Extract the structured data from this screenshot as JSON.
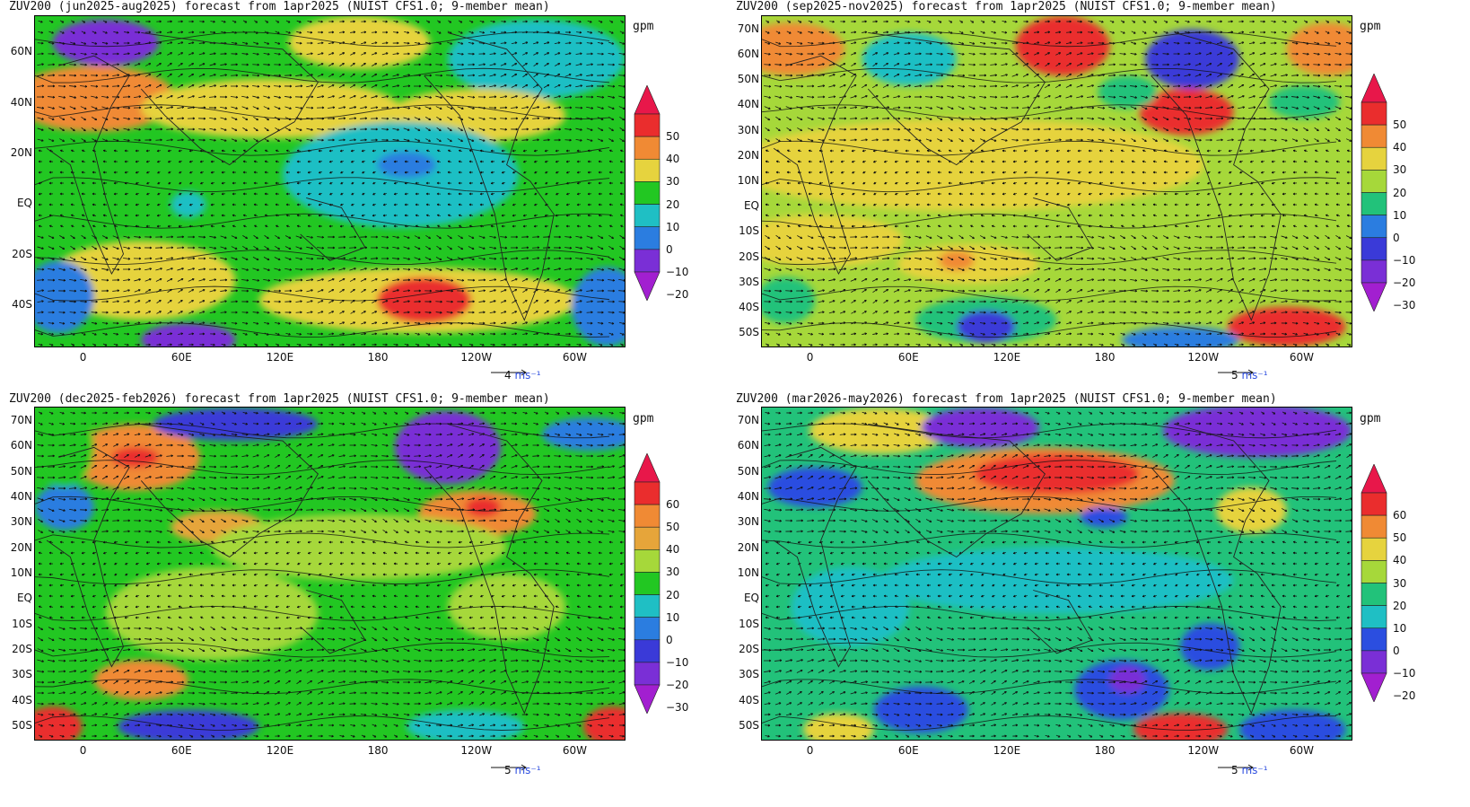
{
  "units_label": "gpm",
  "panels": [
    {
      "id": "jja",
      "title": "ZUV200 (jun2025-aug2025) forecast from 1apr2025 (NUIST CFS1.0; 9-member mean)",
      "lat_labels": [
        "60N",
        "40N",
        "20N",
        "EQ",
        "20S",
        "40S"
      ],
      "lon_labels": [
        "0",
        "60E",
        "120E",
        "180",
        "120W",
        "60W"
      ],
      "colorbar_levels": [
        "50",
        "40",
        "30",
        "20",
        "10",
        "0",
        "-10",
        "-20"
      ],
      "colorbar_colors": [
        "#e8174a",
        "#ea2d2d",
        "#f08a34",
        "#e6d33e",
        "#22c722",
        "#1fbfc4",
        "#2b7de0",
        "#7a2fd6",
        "#a21fd0"
      ],
      "ref_vector": {
        "value": "4",
        "unit": "ms-1"
      },
      "field_base": "#22c722"
    },
    {
      "id": "son",
      "title": "ZUV200 (sep2025-nov2025) forecast from 1apr2025 (NUIST CFS1.0; 9-member mean)",
      "lat_labels": [
        "70N",
        "60N",
        "50N",
        "40N",
        "30N",
        "20N",
        "10N",
        "EQ",
        "10S",
        "20S",
        "30S",
        "40S",
        "50S"
      ],
      "lon_labels": [
        "0",
        "60E",
        "120E",
        "180",
        "120W",
        "60W"
      ],
      "colorbar_levels": [
        "50",
        "40",
        "30",
        "20",
        "10",
        "0",
        "-10",
        "-20",
        "-30"
      ],
      "colorbar_colors": [
        "#e8174a",
        "#ea2d2d",
        "#f08a34",
        "#e6d33e",
        "#a6d83a",
        "#22c27a",
        "#2b7de0",
        "#3a3ad8",
        "#7a2fd6",
        "#a21fd0"
      ],
      "ref_vector": {
        "value": "5",
        "unit": "ms-1"
      },
      "field_base": "#a6d83a"
    },
    {
      "id": "djf",
      "title": "ZUV200 (dec2025-feb2026) forecast from 1apr2025 (NUIST CFS1.0; 9-member mean)",
      "lat_labels": [
        "70N",
        "60N",
        "50N",
        "40N",
        "30N",
        "20N",
        "10N",
        "EQ",
        "10S",
        "20S",
        "30S",
        "40S",
        "50S"
      ],
      "lon_labels": [
        "0",
        "60E",
        "120E",
        "180",
        "120W",
        "60W"
      ],
      "colorbar_levels": [
        "60",
        "50",
        "40",
        "30",
        "20",
        "10",
        "0",
        "-10",
        "-20",
        "-30"
      ],
      "colorbar_colors": [
        "#e8174a",
        "#ea2d2d",
        "#f08a34",
        "#e6a53a",
        "#a6d83a",
        "#22c722",
        "#1fbfc4",
        "#2b7de0",
        "#3a3ad8",
        "#7a2fd6",
        "#a21fd0"
      ],
      "ref_vector": {
        "value": "5",
        "unit": "ms-1"
      },
      "field_base": "#22c722"
    },
    {
      "id": "mam",
      "title": "ZUV200 (mar2026-may2026) forecast from 1apr2025 (NUIST CFS1.0; 9-member mean)",
      "lat_labels": [
        "70N",
        "60N",
        "50N",
        "40N",
        "30N",
        "20N",
        "10N",
        "EQ",
        "10S",
        "20S",
        "30S",
        "40S",
        "50S"
      ],
      "lon_labels": [
        "0",
        "60E",
        "120E",
        "180",
        "120W",
        "60W"
      ],
      "colorbar_levels": [
        "60",
        "50",
        "40",
        "30",
        "20",
        "10",
        "0",
        "-10",
        "-20"
      ],
      "colorbar_colors": [
        "#e8174a",
        "#ea2d2d",
        "#f08a34",
        "#e6d33e",
        "#a6d83a",
        "#22c27a",
        "#1fbfc4",
        "#2b4ee0",
        "#7a2fd6",
        "#a21fd0"
      ],
      "ref_vector": {
        "value": "5",
        "unit": "ms-1"
      },
      "field_base": "#22c27a"
    }
  ]
}
